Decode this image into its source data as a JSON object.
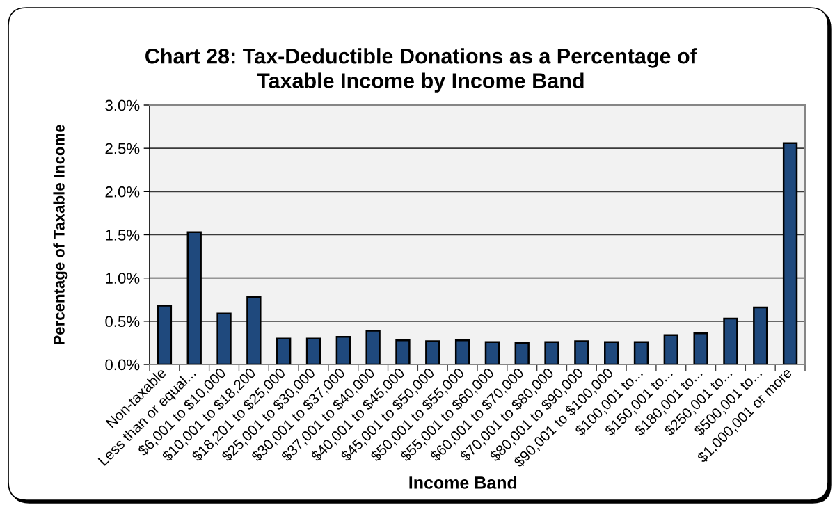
{
  "chart_data": {
    "type": "bar",
    "title": "Chart 28: Tax-Deductible Donations as a Percentage of\nTaxable Income by Income Band",
    "xlabel": "Income Band",
    "ylabel": "Percentage of Taxable Income",
    "categories": [
      "Non-taxable",
      "Less than or equal...",
      "$6,001 to $10,000",
      "$10,001 to $18,200",
      "$18,201 to $25,000",
      "$25,001 to $30,000",
      "$30,001 to $37,000",
      "$37,001 to $40,000",
      "$40,001 to $45,000",
      "$45,001 to $50,000",
      "$50,001 to $55,000",
      "$55,001 to $60,000",
      "$60,001 to $70,000",
      "$70,001 to $80,000",
      "$80,001 to $90,000",
      "$90,001 to $100,000",
      "$100,001 to...",
      "$150,001 to...",
      "$180,001 to...",
      "$250,001 to...",
      "$500,001 to...",
      "$1,000,001 or more"
    ],
    "values": [
      0.68,
      1.53,
      0.59,
      0.78,
      0.3,
      0.3,
      0.32,
      0.39,
      0.28,
      0.27,
      0.28,
      0.26,
      0.25,
      0.26,
      0.27,
      0.26,
      0.26,
      0.34,
      0.36,
      0.53,
      0.66,
      2.56
    ],
    "color": "#1f497d",
    "ylim": [
      0,
      3
    ],
    "yticks": [
      {
        "value": 0,
        "label": "0.0%"
      },
      {
        "value": 0.5,
        "label": "0.5%"
      },
      {
        "value": 1,
        "label": "1.0%"
      },
      {
        "value": 1.5,
        "label": "1.5%"
      },
      {
        "value": 2,
        "label": "2.0%"
      },
      {
        "value": 2.5,
        "label": "2.5%"
      },
      {
        "value": 3,
        "label": "3.0%"
      }
    ],
    "grid": "y"
  }
}
